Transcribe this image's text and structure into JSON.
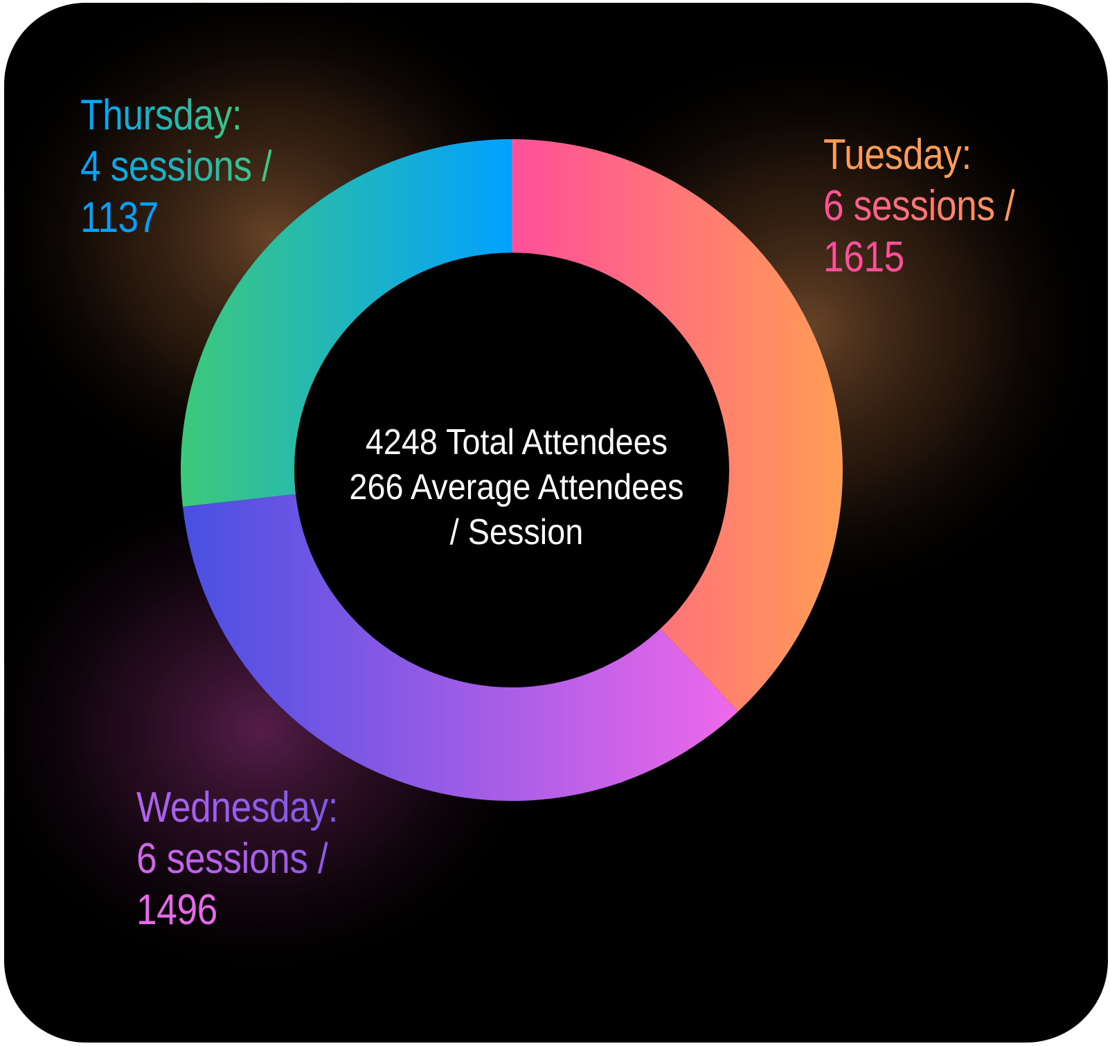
{
  "chart_data": {
    "type": "pie",
    "donut": true,
    "categories": [
      "Tuesday",
      "Wednesday",
      "Thursday"
    ],
    "values": [
      1615,
      1496,
      1137
    ],
    "sessions": [
      6,
      6,
      4
    ],
    "labels": [
      {
        "day": "Tuesday:",
        "sessions": "6 sessions /",
        "count": "1615"
      },
      {
        "day": "Wednesday:",
        "sessions": "6 sessions /",
        "count": "1496"
      },
      {
        "day": "Thursday:",
        "sessions": "4 sessions /",
        "count": "1137"
      }
    ],
    "colors": {
      "tuesday": [
        "#ff4f9a",
        "#ff9c55"
      ],
      "wednesday": [
        "#4a50e2",
        "#ee68ea"
      ],
      "thursday": [
        "#3dc87c",
        "#02a1ff"
      ]
    },
    "center": {
      "total": "4248 Total Attendees",
      "average_line1": "266 Average Attendees",
      "average_line2": "/ Session"
    }
  }
}
